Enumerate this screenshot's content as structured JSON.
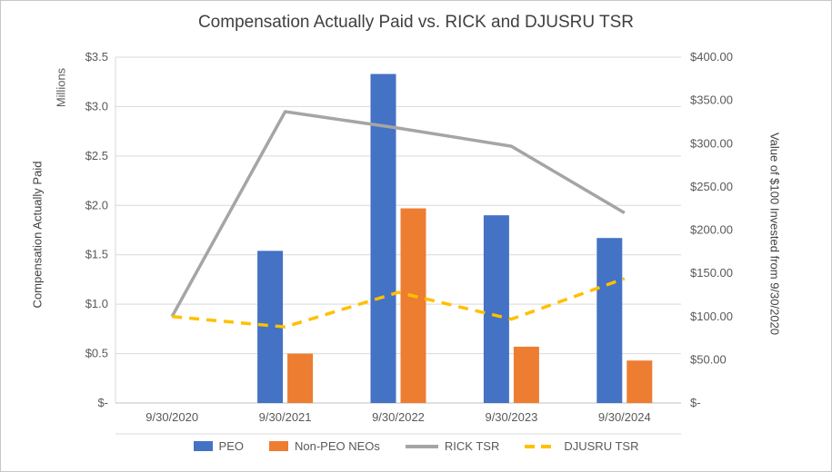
{
  "chart_data": {
    "type": "combo-bar-line",
    "title": "Compensation  Actually Paid vs. RICK and DJUSRU TSR",
    "categories": [
      "9/30/2020",
      "9/30/2021",
      "9/30/2022",
      "9/30/2023",
      "9/30/2024"
    ],
    "left_axis": {
      "units_label": "Millions",
      "title": "Compensation Actually Paid",
      "min": 0,
      "max": 3.5,
      "ticks": [
        "$-",
        "$0.5",
        "$1.0",
        "$1.5",
        "$2.0",
        "$2.5",
        "$3.0",
        "$3.5"
      ]
    },
    "right_axis": {
      "title": "Value of $100 Invested from 9/30/2020",
      "min": 0,
      "max": 400,
      "ticks": [
        "$-",
        "$50.00",
        "$100.00",
        "$150.00",
        "$200.00",
        "$250.00",
        "$300.00",
        "$350.00",
        "$400.00"
      ]
    },
    "bar_series": [
      {
        "name": "PEO",
        "color": "#4472C4",
        "axis": "left",
        "values": [
          null,
          1.54,
          3.33,
          1.9,
          1.67
        ]
      },
      {
        "name": "Non-PEO NEOs",
        "color": "#ED7D31",
        "axis": "left",
        "values": [
          null,
          0.5,
          1.97,
          0.57,
          0.43
        ]
      }
    ],
    "line_series": [
      {
        "name": "RICK TSR",
        "color": "#A5A5A5",
        "dash": false,
        "axis": "right",
        "values": [
          100,
          337,
          318,
          297,
          220
        ]
      },
      {
        "name": "DJUSRU TSR",
        "color": "#FFC000",
        "dash": true,
        "axis": "right",
        "values": [
          100,
          88,
          128,
          97,
          144
        ]
      }
    ],
    "legend_position": "bottom",
    "grid": true,
    "gridline_color": "#D9D9D9",
    "zero_line_color": "#BFBFBF"
  }
}
